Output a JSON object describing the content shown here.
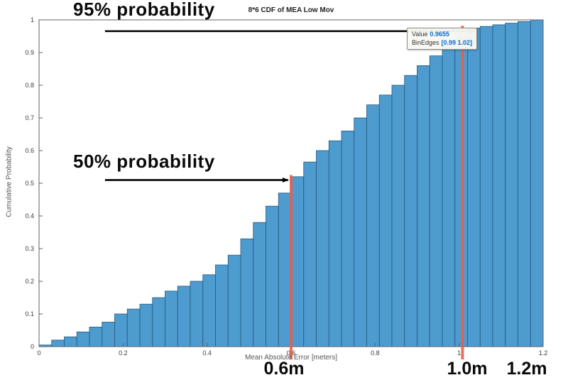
{
  "title": "8*6 CDF of MEA Low Mov",
  "annotations": {
    "p95": "95% probability",
    "p50": "50% probability",
    "label_06": "0.6m",
    "label_10": "1.0m",
    "label_12": "1.2m"
  },
  "datatip": {
    "value_label": "Value",
    "value": "0.9655",
    "binedges_label": "BinEdges",
    "binedges": "[0.99 1.02]"
  },
  "chart_data": {
    "type": "bar",
    "subtype": "cdf-histogram",
    "title": "8*6 CDF of MEA Low Mov",
    "xlabel": "Mean Absolute Error [meters]",
    "ylabel": "Cumulative Probability",
    "xlim": [
      0,
      1.2
    ],
    "ylim": [
      0,
      1
    ],
    "grid": false,
    "bin_width": 0.03,
    "bin_edges_start": 0,
    "values": [
      0.005,
      0.02,
      0.03,
      0.045,
      0.06,
      0.075,
      0.1,
      0.115,
      0.13,
      0.15,
      0.17,
      0.185,
      0.2,
      0.22,
      0.25,
      0.28,
      0.33,
      0.38,
      0.43,
      0.47,
      0.52,
      0.565,
      0.6,
      0.63,
      0.66,
      0.7,
      0.74,
      0.77,
      0.8,
      0.83,
      0.86,
      0.89,
      0.93,
      0.9655,
      0.975,
      0.98,
      0.985,
      0.99,
      0.995,
      1.0
    ],
    "highlighted_bin": {
      "value": 0.9655,
      "bin_edges": [
        0.99,
        1.02
      ]
    },
    "x_ticks": [
      0,
      0.2,
      0.4,
      0.6,
      0.8,
      1,
      1.2
    ],
    "x_tick_labels": [
      "0",
      "0.2",
      "0.4",
      "0.6",
      "0.8",
      "1",
      "1.2"
    ],
    "y_ticks": [
      0,
      0.1,
      0.2,
      0.3,
      0.4,
      0.5,
      0.6,
      0.7,
      0.8,
      0.9,
      1
    ],
    "y_tick_labels": [
      "0",
      "0.1",
      "0.2",
      "0.3",
      "0.4",
      "0.5",
      "0.6",
      "0.7",
      "0.8",
      "0.9",
      "1"
    ],
    "bar_color": "#4E9BD0",
    "bar_edge_color": "#23587A",
    "ref_line_color": "#E8604C",
    "ref_lines": [
      {
        "x": 0.6,
        "y_top": 0.525
      },
      {
        "x": 1.008,
        "y_top": 0.982
      }
    ],
    "arrows": [
      {
        "x1": 0.157,
        "y1": 0.9655,
        "x2": 1.036,
        "y2": 0.9655
      },
      {
        "x1": 0.157,
        "y1": 0.51,
        "x2": 0.593,
        "y2": 0.51
      }
    ]
  }
}
